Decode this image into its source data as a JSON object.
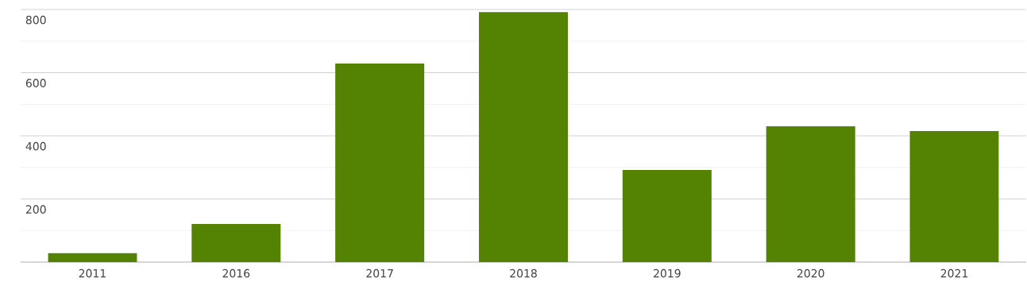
{
  "chart_data": {
    "type": "bar",
    "categories": [
      "2011",
      "2016",
      "2017",
      "2018",
      "2019",
      "2020",
      "2021"
    ],
    "values": [
      28,
      121,
      629,
      792,
      292,
      430,
      415
    ],
    "color": "#548203",
    "ylim": [
      0,
      800
    ],
    "yticks": [
      {
        "value": 100,
        "label": null
      },
      200,
      {
        "value": 300,
        "label": null
      },
      400,
      {
        "value": 500,
        "label": null
      },
      600,
      {
        "value": 700,
        "label": null
      },
      800
    ],
    "grid": "y"
  }
}
